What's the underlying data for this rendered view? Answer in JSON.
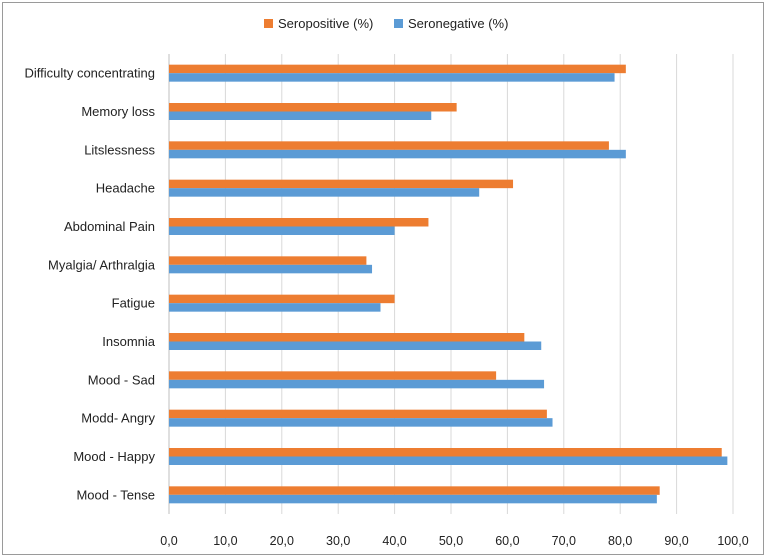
{
  "colors": {
    "seropositive": "#ED7D31",
    "seronegative": "#5B9BD5",
    "grid": "#d9d9d9",
    "axis": "#bfbfbf"
  },
  "chart_data": {
    "type": "bar",
    "orientation": "horizontal",
    "title": "",
    "xlabel": "",
    "ylabel": "",
    "xlim": [
      0,
      100
    ],
    "grid": true,
    "legend_position": "top",
    "x_tick_labels": [
      "0,0",
      "10,0",
      "20,0",
      "30,0",
      "40,0",
      "50,0",
      "60,0",
      "70,0",
      "80,0",
      "90,0",
      "100,0"
    ],
    "categories": [
      "Difficulty concentrating",
      "Memory loss",
      "Litslessness",
      "Headache",
      "Abdominal Pain",
      "Myalgia/ Arthralgia",
      "Fatigue",
      "Insomnia",
      "Mood - Sad",
      "Modd- Angry",
      "Mood - Happy",
      "Mood - Tense"
    ],
    "series": [
      {
        "name": "Seropositive (%)",
        "values": [
          81,
          51,
          78,
          61,
          46,
          35,
          40,
          63,
          58,
          67,
          98,
          87
        ]
      },
      {
        "name": "Seronegative (%)",
        "values": [
          79,
          46.5,
          81,
          55,
          40,
          36,
          37.5,
          66,
          66.5,
          68,
          99,
          86.5
        ]
      }
    ]
  }
}
